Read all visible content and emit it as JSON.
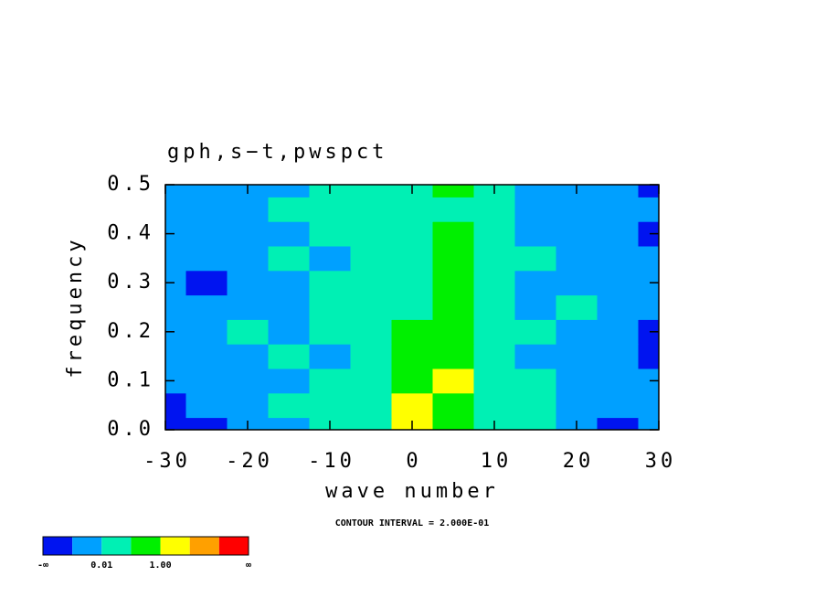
{
  "chart_data": {
    "type": "contour",
    "title": "gph,s−t,pwspct",
    "x_label": "wave number",
    "y_label": "frequency",
    "annotation": "CONTOUR INTERVAL = 2.000E-01",
    "x": [
      -30,
      -25,
      -20,
      -15,
      -10,
      -5,
      0,
      5,
      10,
      15,
      20,
      25,
      30
    ],
    "y": [
      0,
      0.05,
      0.1,
      0.15,
      0.2,
      0.25,
      0.3,
      0.35,
      0.4,
      0.45,
      0.5
    ],
    "z": [
      [
        0,
        0,
        1,
        1,
        2,
        2,
        4,
        3,
        2,
        2,
        1,
        0,
        1
      ],
      [
        0,
        1,
        1,
        2,
        2,
        2,
        4,
        3,
        2,
        2,
        1,
        1,
        1
      ],
      [
        1,
        1,
        1,
        1,
        2,
        2,
        3,
        4,
        2,
        2,
        1,
        1,
        1
      ],
      [
        1,
        1,
        1,
        2,
        1,
        2,
        3,
        3,
        2,
        1,
        1,
        1,
        0
      ],
      [
        1,
        1,
        2,
        1,
        2,
        2,
        3,
        3,
        2,
        2,
        1,
        1,
        0
      ],
      [
        1,
        1,
        1,
        1,
        2,
        2,
        2,
        3,
        2,
        1,
        2,
        1,
        1
      ],
      [
        1,
        0,
        1,
        1,
        2,
        2,
        2,
        3,
        2,
        1,
        1,
        1,
        1
      ],
      [
        1,
        1,
        1,
        2,
        1,
        2,
        2,
        3,
        2,
        2,
        1,
        1,
        1
      ],
      [
        1,
        1,
        1,
        1,
        2,
        2,
        2,
        3,
        2,
        1,
        1,
        1,
        0
      ],
      [
        1,
        1,
        1,
        2,
        2,
        2,
        2,
        2,
        2,
        1,
        1,
        1,
        1
      ],
      [
        1,
        1,
        1,
        1,
        2,
        2,
        2,
        3,
        2,
        1,
        1,
        1,
        0
      ]
    ],
    "colors": [
      "#0014f0",
      "#00a0ff",
      "#00f0b4",
      "#00f000",
      "#ffff00",
      "#ffa000",
      "#ff0000"
    ],
    "colorbar_labels": [
      "-∞",
      "0.01",
      "1.00",
      "∞"
    ],
    "xlim": [
      -30,
      30
    ],
    "ylim": [
      0,
      0.5
    ],
    "xticks": [
      -30,
      -20,
      -10,
      0,
      10,
      20,
      30
    ],
    "yticks": [
      {
        "value": 0,
        "label": "0.0"
      },
      0.1,
      0.2,
      0.3,
      0.4,
      0.5
    ]
  }
}
